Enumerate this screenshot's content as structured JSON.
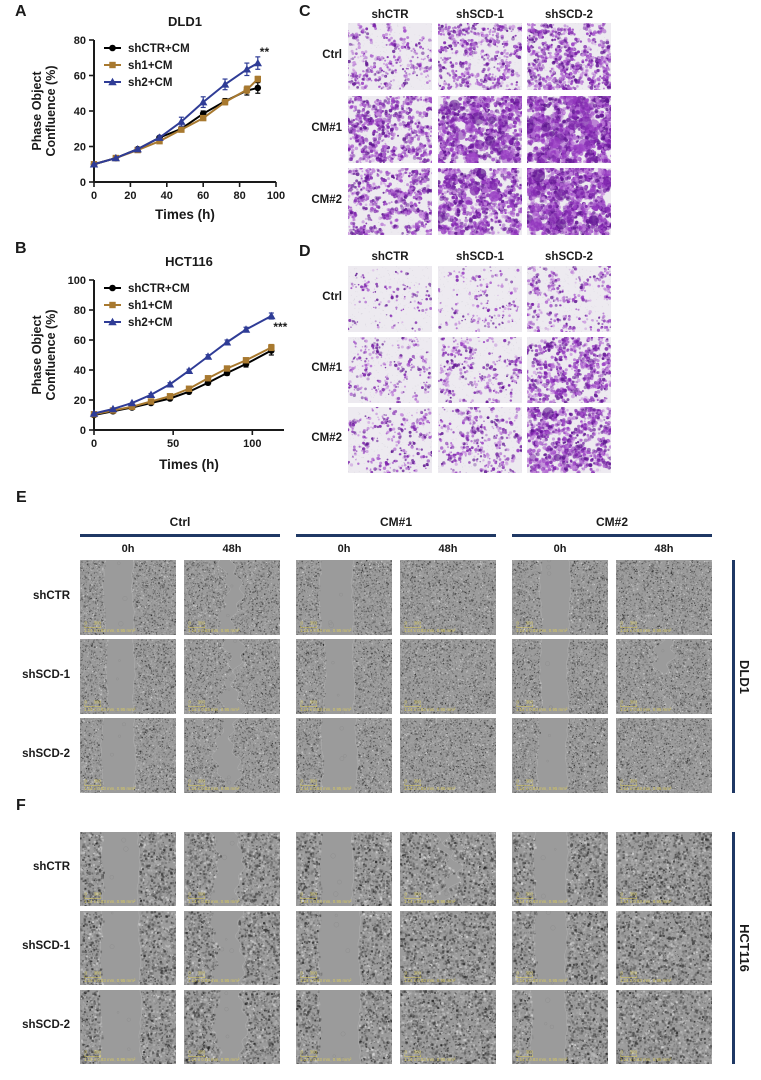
{
  "colors": {
    "navy": "#1F3864",
    "brown": "#A8792F",
    "blue": "#2F3C96",
    "black": "#000000",
    "purple_palette": [
      "#b06ad0",
      "#9a3fc4",
      "#7c22ab",
      "#5f1690",
      "#c78fdd"
    ],
    "transwell_bg": "#edeaf0",
    "wound_bg": "#9b9b9b",
    "anno_yellow": "#d9ca5e"
  },
  "chart_data": [
    {
      "id": "A",
      "type": "line",
      "title": "DLD1",
      "xlabel": "Times (h)",
      "ylabel": "Phase Object Confluence (%)",
      "xlim": [
        0,
        100
      ],
      "ylim": [
        0,
        80
      ],
      "xticks": [
        0,
        20,
        40,
        60,
        80,
        100
      ],
      "yticks": [
        0,
        20,
        40,
        60,
        80
      ],
      "grid": false,
      "legend_position": "top-left",
      "significance": "**",
      "x": [
        0,
        12,
        24,
        36,
        48,
        60,
        72,
        84,
        90
      ],
      "series": [
        {
          "name": "shCTR+CM",
          "color": "#000000",
          "marker": "circle",
          "values": [
            10,
            13.5,
            18.5,
            25,
            30,
            38.5,
            45.5,
            51.5,
            53
          ],
          "err": [
            0.5,
            0.5,
            0.8,
            0.8,
            1,
            1.5,
            1.5,
            2.5,
            3
          ]
        },
        {
          "name": "sh1+CM",
          "color": "#A8792F",
          "marker": "square",
          "values": [
            10,
            13.5,
            18,
            23,
            29.5,
            36,
            45,
            52,
            58
          ],
          "err": [
            0.5,
            0.5,
            0.8,
            0.8,
            1,
            1.2,
            1.5,
            2,
            1.5
          ]
        },
        {
          "name": "sh2+CM",
          "color": "#2F3C96",
          "marker": "triangle",
          "values": [
            10,
            13.5,
            18.5,
            25,
            34,
            45,
            55,
            63.5,
            67
          ],
          "err": [
            0.5,
            0.5,
            0.8,
            1,
            2.5,
            3,
            3,
            3.5,
            3.5
          ]
        }
      ]
    },
    {
      "id": "B",
      "type": "line",
      "title": "HCT116",
      "xlabel": "Times (h)",
      "ylabel": "Phase Object Confluence (%)",
      "xlim": [
        0,
        120
      ],
      "ylim": [
        0,
        100
      ],
      "xticks": [
        0,
        50,
        100
      ],
      "yticks": [
        0,
        20,
        40,
        60,
        80,
        100
      ],
      "grid": false,
      "legend_position": "top-left",
      "significance": "***",
      "x": [
        0,
        12,
        24,
        36,
        48,
        60,
        72,
        84,
        96,
        112
      ],
      "series": [
        {
          "name": "shCTR+CM",
          "color": "#000000",
          "marker": "circle",
          "values": [
            10,
            12.5,
            15,
            18,
            21,
            25.5,
            31.5,
            38,
            44,
            53
          ],
          "err": [
            0.5,
            0.5,
            0.5,
            0.8,
            0.8,
            1,
            1.2,
            1.5,
            2,
            3
          ]
        },
        {
          "name": "sh1+CM",
          "color": "#A8792F",
          "marker": "square",
          "values": [
            10.5,
            13,
            15.5,
            19,
            22.5,
            27.5,
            34.5,
            41,
            46.5,
            55
          ],
          "err": [
            0.5,
            0.5,
            0.5,
            0.8,
            0.8,
            1,
            1.2,
            1.5,
            1.5,
            2
          ]
        },
        {
          "name": "sh2+CM",
          "color": "#2F3C96",
          "marker": "triangle",
          "values": [
            11,
            14,
            18,
            23.5,
            30.5,
            39.5,
            49,
            58.5,
            67,
            76
          ],
          "err": [
            0.5,
            0.5,
            0.5,
            0.8,
            1,
            1,
            1.2,
            1.5,
            1.5,
            2
          ]
        }
      ]
    }
  ],
  "panels": {
    "A": {
      "label": "A"
    },
    "B": {
      "label": "B"
    },
    "C": {
      "label": "C",
      "col_headers": [
        "shCTR",
        "shSCD-1",
        "shSCD-2"
      ],
      "row_headers": [
        "Ctrl",
        "CM#1",
        "CM#2"
      ],
      "stain": "crystal-violet",
      "densities": [
        [
          0.3,
          0.42,
          0.55
        ],
        [
          0.55,
          0.75,
          0.92
        ],
        [
          0.52,
          0.7,
          0.88
        ]
      ]
    },
    "D": {
      "label": "D",
      "col_headers": [
        "shCTR",
        "shSCD-1",
        "shSCD-2"
      ],
      "row_headers": [
        "Ctrl",
        "CM#1",
        "CM#2"
      ],
      "stain": "crystal-violet",
      "densities": [
        [
          0.1,
          0.14,
          0.28
        ],
        [
          0.22,
          0.27,
          0.55
        ],
        [
          0.26,
          0.32,
          0.62
        ]
      ]
    },
    "E": {
      "label": "E",
      "cell_line": "DLD1",
      "group_headers": [
        "Ctrl",
        "CM#1",
        "CM#2"
      ],
      "time_headers": [
        "0h",
        "48h"
      ],
      "row_headers": [
        "shCTR",
        "shSCD-1",
        "shSCD-2"
      ],
      "annotation": {
        "zero": "0",
        "scale": "300",
        "field": "1.14 x 0.83 mm, 0.95 mm²"
      },
      "wounds": [
        [
          {
            "state": "open",
            "w": 0.3,
            "c": 0.4,
            "j": 0.12
          },
          {
            "state": "partial",
            "w": 0.15,
            "c": 0.48,
            "j": 0.55
          },
          {
            "state": "open",
            "w": 0.34,
            "c": 0.42,
            "j": 0.12
          },
          {
            "state": "closed",
            "w": 0,
            "c": 0.5,
            "j": 0
          },
          {
            "state": "open",
            "w": 0.3,
            "c": 0.45,
            "j": 0.12
          },
          {
            "state": "closed",
            "w": 0,
            "c": 0.5,
            "j": 0
          }
        ],
        [
          {
            "state": "open",
            "w": 0.28,
            "c": 0.42,
            "j": 0.12
          },
          {
            "state": "partial",
            "w": 0.13,
            "c": 0.5,
            "j": 0.6
          },
          {
            "state": "open",
            "w": 0.3,
            "c": 0.45,
            "j": 0.12
          },
          {
            "state": "closed",
            "w": 0,
            "c": 0.5,
            "j": 0
          },
          {
            "state": "open",
            "w": 0.28,
            "c": 0.44,
            "j": 0.12
          },
          {
            "state": "partial",
            "w": 0.07,
            "c": 0.5,
            "j": 0.7
          }
        ],
        [
          {
            "state": "open",
            "w": 0.34,
            "c": 0.4,
            "j": 0.12
          },
          {
            "state": "partial",
            "w": 0.17,
            "c": 0.45,
            "j": 0.55
          },
          {
            "state": "open",
            "w": 0.36,
            "c": 0.45,
            "j": 0.12
          },
          {
            "state": "closed",
            "w": 0,
            "c": 0.5,
            "j": 0
          },
          {
            "state": "open",
            "w": 0.3,
            "c": 0.42,
            "j": 0.12
          },
          {
            "state": "closed",
            "w": 0,
            "c": 0.5,
            "j": 0
          }
        ]
      ]
    },
    "F": {
      "label": "F",
      "cell_line": "HCT116",
      "row_headers": [
        "shCTR",
        "shSCD-1",
        "shSCD-2"
      ],
      "annotation": {
        "zero": "0",
        "scale": "300",
        "field": "1.14 x 0.83 mm, 0.95 mm²"
      },
      "wounds": [
        [
          {
            "state": "open",
            "w": 0.38,
            "c": 0.42,
            "j": 0.12
          },
          {
            "state": "partial",
            "w": 0.26,
            "c": 0.45,
            "j": 0.4
          },
          {
            "state": "open",
            "w": 0.34,
            "c": 0.42,
            "j": 0.12
          },
          {
            "state": "partial",
            "w": 0.1,
            "c": 0.5,
            "j": 0.8
          },
          {
            "state": "open",
            "w": 0.34,
            "c": 0.4,
            "j": 0.12
          },
          {
            "state": "closed",
            "w": 0,
            "c": 0.5,
            "j": 0
          }
        ],
        [
          {
            "state": "open",
            "w": 0.4,
            "c": 0.42,
            "j": 0.12
          },
          {
            "state": "partial",
            "w": 0.28,
            "c": 0.45,
            "j": 0.4
          },
          {
            "state": "open",
            "w": 0.42,
            "c": 0.45,
            "j": 0.12
          },
          {
            "state": "closed",
            "w": 0,
            "c": 0.5,
            "j": 0
          },
          {
            "state": "open",
            "w": 0.32,
            "c": 0.4,
            "j": 0.12
          },
          {
            "state": "closed",
            "w": 0,
            "c": 0.5,
            "j": 0
          }
        ],
        [
          {
            "state": "open",
            "w": 0.42,
            "c": 0.42,
            "j": 0.12
          },
          {
            "state": "partial",
            "w": 0.28,
            "c": 0.48,
            "j": 0.4
          },
          {
            "state": "open",
            "w": 0.42,
            "c": 0.45,
            "j": 0.12
          },
          {
            "state": "closed",
            "w": 0,
            "c": 0.5,
            "j": 0
          },
          {
            "state": "open",
            "w": 0.36,
            "c": 0.38,
            "j": 0.12
          },
          {
            "state": "closed",
            "w": 0,
            "c": 0.5,
            "j": 0
          }
        ]
      ]
    }
  }
}
